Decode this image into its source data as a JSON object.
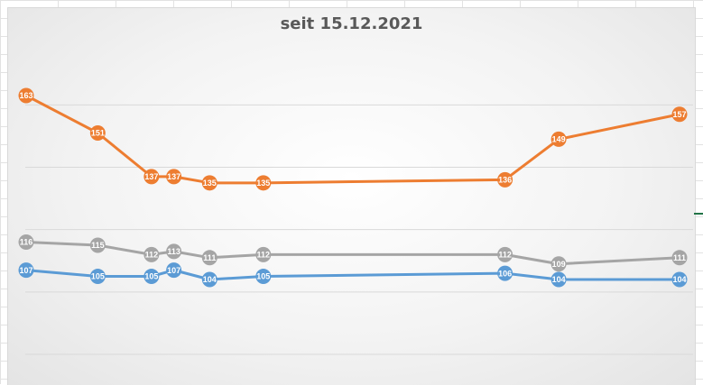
{
  "chart_data": {
    "type": "line",
    "title": "seit 15.12.2021",
    "xlabel": "",
    "ylabel": "",
    "x_positions": [
      0,
      8,
      14,
      16.5,
      20.5,
      26.5,
      53.5,
      59.5,
      73
    ],
    "ylim": [
      70,
      175
    ],
    "grid": "horizontal",
    "legend": "none",
    "series": [
      {
        "color": "#ED7D31",
        "values": [
          163,
          151,
          137,
          137,
          135,
          135,
          136,
          149,
          157
        ]
      },
      {
        "color": "#A5A5A5",
        "values": [
          116,
          115,
          112,
          113,
          111,
          112,
          112,
          109,
          111
        ]
      },
      {
        "color": "#5B9BD5",
        "values": [
          107,
          105,
          105,
          107,
          104,
          105,
          106,
          104,
          104
        ]
      }
    ]
  },
  "gridlines": [
    80,
    100,
    120,
    140,
    160
  ]
}
